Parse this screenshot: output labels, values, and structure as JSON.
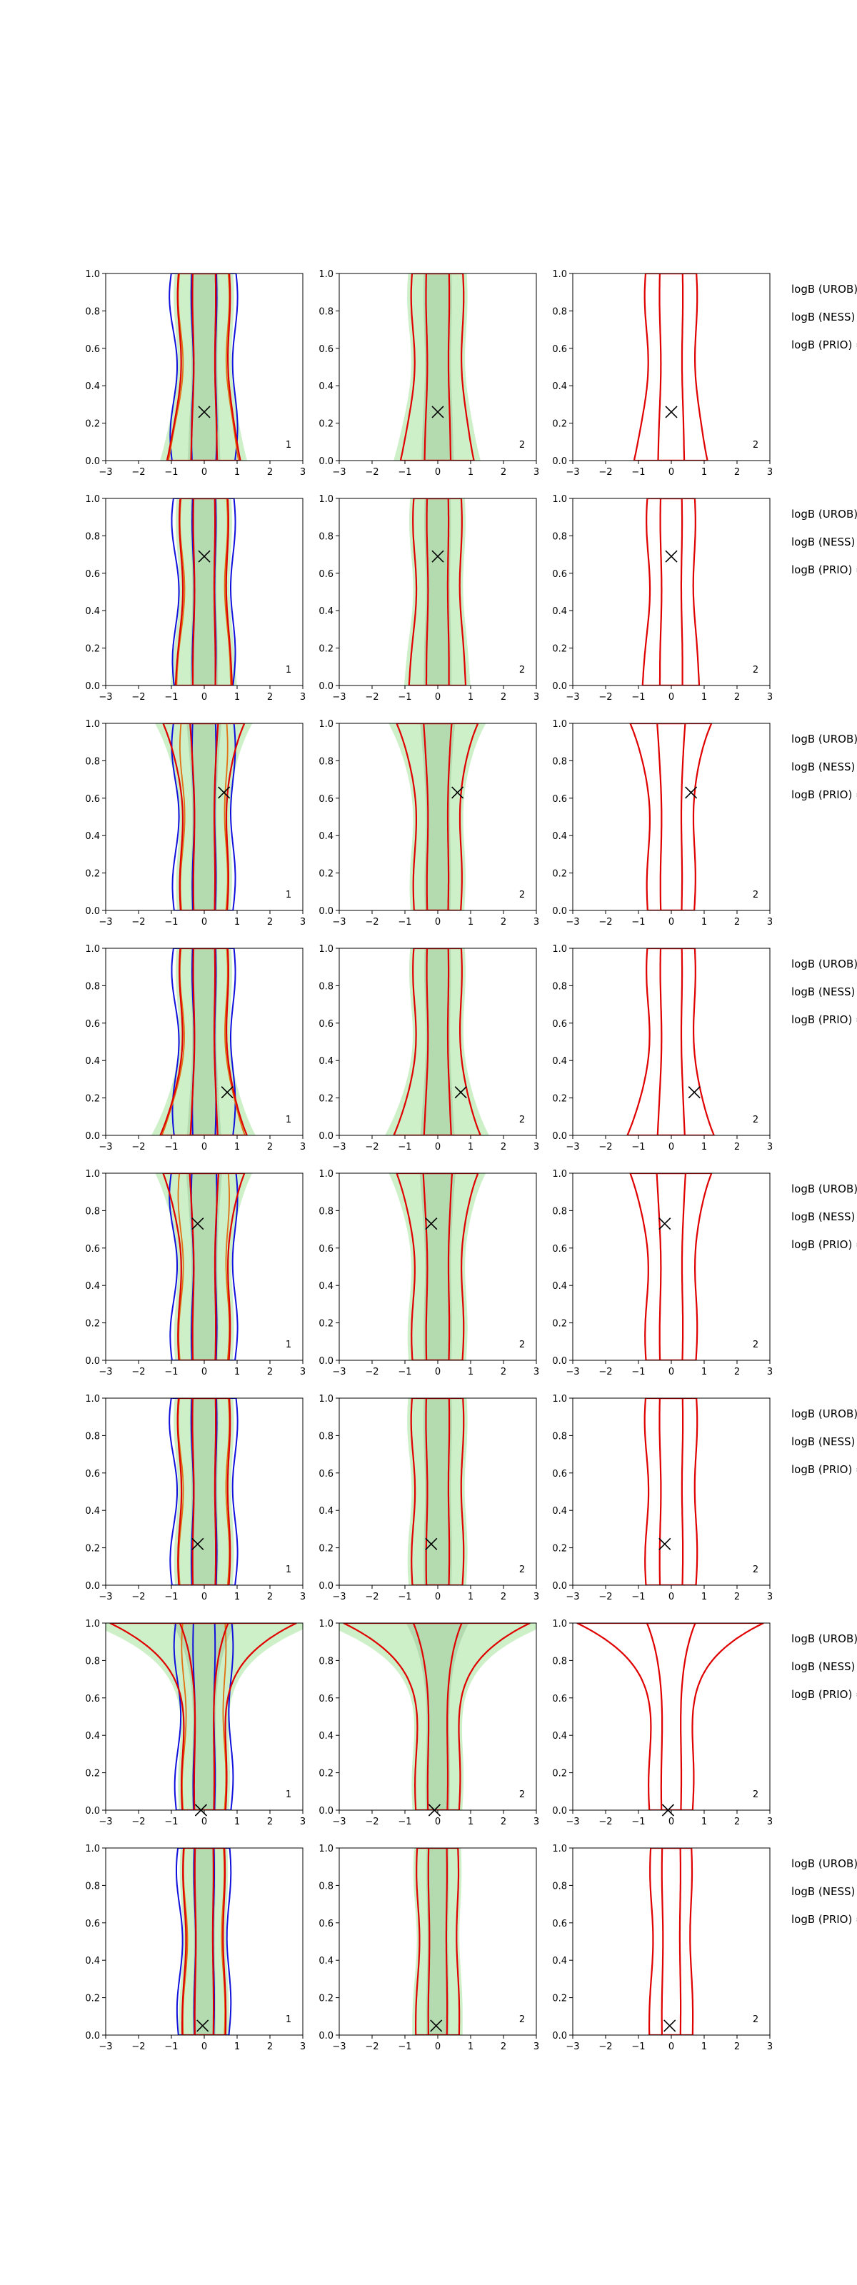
{
  "chart_data": {
    "type": "contour",
    "description_free": true,
    "xlim": [
      -3,
      3
    ],
    "ylim": [
      0,
      1
    ],
    "xticks": [
      -3,
      -2,
      -1,
      0,
      1,
      2,
      3
    ],
    "xtick_labels": [
      "−3",
      "−2",
      "−1",
      "0",
      "1",
      "2",
      "3"
    ],
    "yticks": [
      0,
      0.2,
      0.4,
      0.6,
      0.8,
      1.0
    ],
    "ytick_labels": [
      "0.0",
      "0.2",
      "0.4",
      "0.6",
      "0.8",
      "1.0"
    ],
    "grid": false,
    "colors": {
      "fill_outer": "#cdf0c8",
      "fill_inner": "#b4dab0",
      "contour_red": "#e00000",
      "contour_blue": "#1010dd",
      "contour_orange": "#e07010",
      "marker": "#000000"
    },
    "column_tags": [
      "1",
      "2",
      "2"
    ],
    "legend_lines": [
      "logB (UROB) =",
      "logB (NESS) =",
      "logB (PRIO) ="
    ],
    "rows": [
      {
        "marker": [
          0.0,
          0.26
        ],
        "width": 0.75,
        "top_flare": 0.0,
        "bottom_flare": 0.35
      },
      {
        "marker": [
          0.0,
          0.69
        ],
        "width": 0.7,
        "top_flare": 0.0,
        "bottom_flare": 0.15
      },
      {
        "marker": [
          0.6,
          0.63
        ],
        "width": 0.7,
        "top_flare": 0.5,
        "bottom_flare": 0.0
      },
      {
        "marker": [
          0.7,
          0.23
        ],
        "width": 0.7,
        "top_flare": 0.0,
        "bottom_flare": 0.6
      },
      {
        "marker": [
          -0.2,
          0.73
        ],
        "width": 0.75,
        "top_flare": 0.45,
        "bottom_flare": 0.0
      },
      {
        "marker": [
          -0.2,
          0.22
        ],
        "width": 0.75,
        "top_flare": 0.0,
        "bottom_flare": 0.0
      },
      {
        "marker": [
          -0.1,
          0.0
        ],
        "width": 0.65,
        "top_flare": 2.1,
        "bottom_flare": 0.0
      },
      {
        "marker": [
          -0.05,
          0.05
        ],
        "width": 0.6,
        "top_flare": 0.0,
        "bottom_flare": 0.05
      }
    ]
  }
}
